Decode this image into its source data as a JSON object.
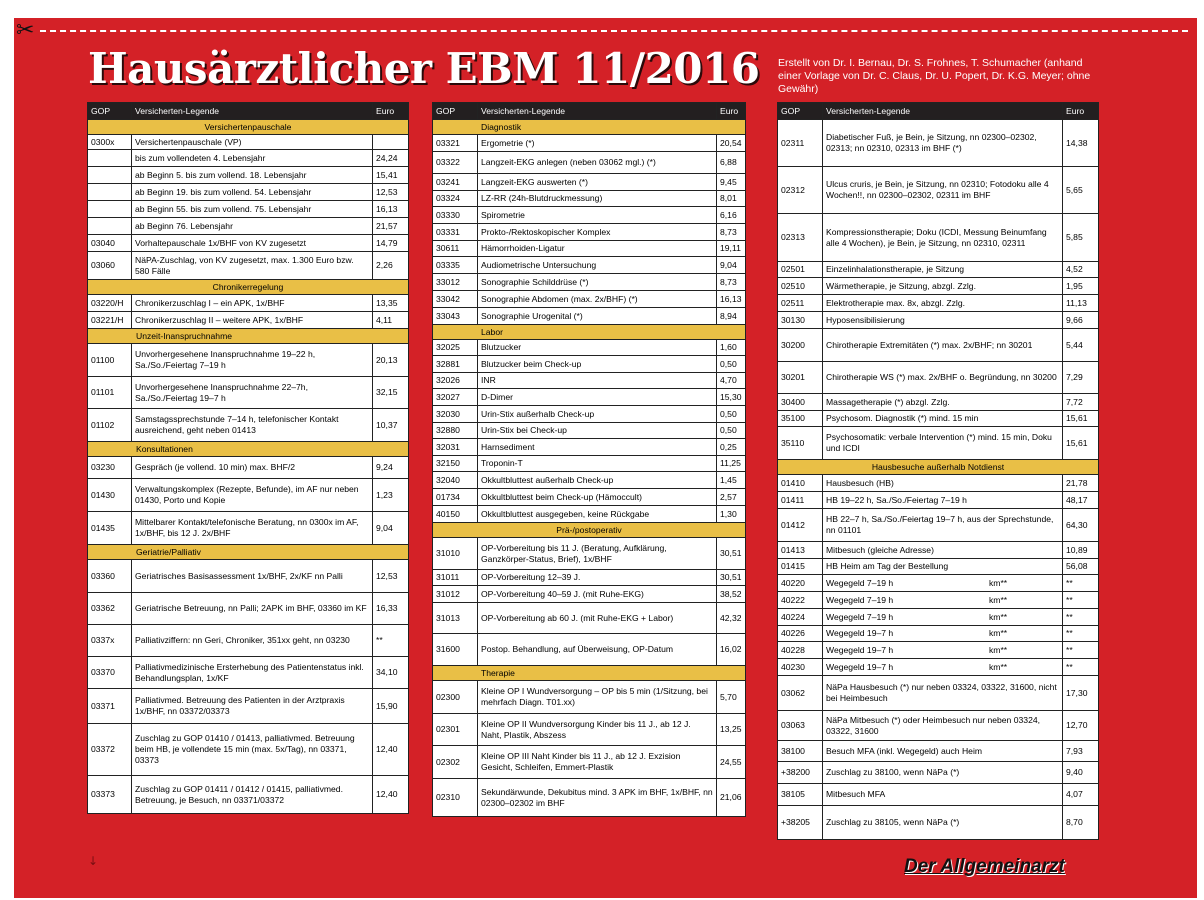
{
  "title": "Hausärztlicher EBM 11/2016",
  "credits": "Erstellt von Dr. I. Bernau, Dr. S. Frohnes, T. Schumacher (anhand einer Vorlage von Dr. C. Claus, Dr. U. Popert, Dr. K.G. Meyer; ohne Gewähr)",
  "brand": "Der Allgemeinarzt",
  "icons": {
    "scissors": "scissors-icon",
    "arrow": "arrow-down-icon"
  },
  "colors": {
    "background": "#d42127",
    "section": "#e9bf46",
    "header": "#231f20"
  },
  "header": {
    "gop": "GOP",
    "legend": "Versicherten-Legende",
    "euro": "Euro"
  },
  "columns": [
    {
      "rows": [
        {
          "t": "s",
          "label": "Versichertenpauschale",
          "h": 15
        },
        {
          "t": "r",
          "gop": "0300x",
          "text": "Versichertenpauschale (VP)",
          "euro": "",
          "h": 15
        },
        {
          "t": "r",
          "gop": "",
          "text": "bis zum vollendeten 4. Lebensjahr",
          "euro": "24,24",
          "h": 17,
          "sub": 1
        },
        {
          "t": "r",
          "gop": "",
          "text": "ab Beginn 5. bis zum vollend. 18. Lebensjahr",
          "euro": "15,41",
          "h": 17,
          "sub": 1
        },
        {
          "t": "r",
          "gop": "",
          "text": "ab Beginn 19. bis zum vollend. 54. Lebensjahr",
          "euro": "12,53",
          "h": 17,
          "sub": 1
        },
        {
          "t": "r",
          "gop": "",
          "text": "ab Beginn 55. bis zum vollend. 75. Lebensjahr",
          "euro": "16,13",
          "h": 17,
          "sub": 1
        },
        {
          "t": "r",
          "gop": "",
          "text": "ab Beginn 76. Lebensjahr",
          "euro": "21,57",
          "h": 17,
          "sub": 1
        },
        {
          "t": "r",
          "gop": "03040",
          "text": "Vorhaltepauschale 1x/BHF von KV zugesetzt",
          "euro": "14,79",
          "h": 17
        },
        {
          "t": "r",
          "gop": "03060",
          "text": "NäPA-Zuschlag, von KV zugesetzt, max. 1.300 Euro bzw. 580 Fälle",
          "euro": "2,26",
          "h": 28
        },
        {
          "t": "s",
          "label": "Chronikerregelung",
          "h": 15
        },
        {
          "t": "r",
          "gop": "03220/H",
          "text": "Chronikerzuschlag I – ein APK, 1x/BHF",
          "euro": "13,35",
          "h": 17
        },
        {
          "t": "r",
          "gop": "03221/H",
          "text": "Chronikerzuschlag II – weitere APK, 1x/BHF",
          "euro": "4,11",
          "h": 17
        },
        {
          "t": "s",
          "label": "Unzeit-Inanspruchnahme",
          "h": 15,
          "left": 1
        },
        {
          "t": "r",
          "gop": "01100",
          "text": "Unvorhergesehene Inanspruchnahme 19–22 h, Sa./So./Feiertag 7–19 h",
          "euro": "20,13",
          "h": 33
        },
        {
          "t": "r",
          "gop": "01101",
          "text": "Unvorhergesehene Inanspruchnahme 22–7h, Sa./So./Feiertag 19–7 h",
          "euro": "32,15",
          "h": 32
        },
        {
          "t": "r",
          "gop": "01102",
          "text": "Samstagssprechstunde 7–14 h, telefonischer Kontakt ausreichend, geht neben 01413",
          "euro": "10,37",
          "h": 33
        },
        {
          "t": "s",
          "label": "Konsultationen",
          "h": 15,
          "left": 1
        },
        {
          "t": "r",
          "gop": "03230",
          "text": "Gespräch (je vollend. 10 min) max. BHF/2",
          "euro": "9,24",
          "h": 22
        },
        {
          "t": "r",
          "gop": "01430",
          "text": "Verwaltungskomplex (Rezepte, Befunde), im AF nur neben 01430, Porto und Kopie",
          "euro": "1,23",
          "h": 33
        },
        {
          "t": "r",
          "gop": "01435",
          "text": "Mittelbarer Kontakt/telefonische Beratung, nn 0300x im AF, 1x/BHF, bis 12 J. 2x/BHF",
          "euro": "9,04",
          "h": 33
        },
        {
          "t": "s",
          "label": "Geriatrie/Palliativ",
          "h": 15,
          "left": 1
        },
        {
          "t": "r",
          "gop": "03360",
          "text": "Geriatrisches Basisassessment 1x/BHF, 2x/KF nn Palli",
          "euro": "12,53",
          "h": 33
        },
        {
          "t": "r",
          "gop": "03362",
          "text": "Geriatrische Betreuung, nn Palli; 2APK im BHF, 03360 im KF",
          "euro": "16,33",
          "h": 32
        },
        {
          "t": "r",
          "gop": "0337x",
          "text": "Palliativziffern: nn Geri, Chroniker, 351xx geht, nn 03230",
          "euro": "**",
          "h": 32
        },
        {
          "t": "r",
          "gop": "03370",
          "text": "Palliativmedizinische Ersterhebung des Patientenstatus inkl. Behandlungsplan, 1x/KF",
          "euro": "34,10",
          "h": 32
        },
        {
          "t": "r",
          "gop": "03371",
          "text": "Palliativmed. Betreuung des Patienten in der Arztpraxis 1x/BHF, nn 03372/03373",
          "euro": "15,90",
          "h": 35
        },
        {
          "t": "r",
          "gop": "03372",
          "text": "Zuschlag zu GOP 01410 / 01413, palliativmed. Betreuung beim HB, je vollendete 15 min (max. 5x/Tag), nn 03371, 03373",
          "euro": "12,40",
          "h": 52
        },
        {
          "t": "r",
          "gop": "03373",
          "text": "Zuschlag zu GOP 01411 / 01412 / 01415, palliativmed. Betreuung, je Besuch, nn 03371/03372",
          "euro": "12,40",
          "h": 38
        }
      ]
    },
    {
      "rows": [
        {
          "t": "s",
          "label": "Diagnostik",
          "h": 15,
          "left": 1
        },
        {
          "t": "r",
          "gop": "03321",
          "text": "Ergometrie (*)",
          "euro": "20,54",
          "h": 17
        },
        {
          "t": "r",
          "gop": "03322",
          "text": "Langzeit-EKG anlegen (neben 03062 mgl.) (*)",
          "euro": "6,88",
          "h": 22
        },
        {
          "t": "r",
          "gop": "03241",
          "text": "Langzeit-EKG auswerten (*)",
          "euro": "9,45",
          "h": 17
        },
        {
          "t": "r",
          "gop": "03324",
          "text": "LZ-RR (24h-Blutdruckmessung)",
          "euro": "8,01",
          "h": 16
        },
        {
          "t": "r",
          "gop": "03330",
          "text": "Spirometrie",
          "euro": "6,16",
          "h": 17
        },
        {
          "t": "r",
          "gop": "03331",
          "text": "Prokto-/Rektoskopischer Komplex",
          "euro": "8,73",
          "h": 17
        },
        {
          "t": "r",
          "gop": "30611",
          "text": "Hämorrhoiden-Ligatur",
          "euro": "19,11",
          "h": 16
        },
        {
          "t": "r",
          "gop": "03335",
          "text": "Audiometrische Untersuchung",
          "euro": "9,04",
          "h": 17
        },
        {
          "t": "r",
          "gop": "33012",
          "text": "Sonographie Schilddrüse (*)",
          "euro": "8,73",
          "h": 17
        },
        {
          "t": "r",
          "gop": "33042",
          "text": "Sonographie Abdomen (max. 2x/BHF) (*)",
          "euro": "16,13",
          "h": 17
        },
        {
          "t": "r",
          "gop": "33043",
          "text": "Sonographie Urogenital (*)",
          "euro": "8,94",
          "h": 17
        },
        {
          "t": "s",
          "label": "Labor",
          "h": 15,
          "left": 1
        },
        {
          "t": "r",
          "gop": "32025",
          "text": "Blutzucker",
          "euro": "1,60",
          "h": 16
        },
        {
          "t": "r",
          "gop": "32881",
          "text": "Blutzucker beim Check-up",
          "euro": "0,50",
          "h": 17
        },
        {
          "t": "r",
          "gop": "32026",
          "text": "INR",
          "euro": "4,70",
          "h": 16
        },
        {
          "t": "r",
          "gop": "32027",
          "text": "D-Dimer",
          "euro": "15,30",
          "h": 17
        },
        {
          "t": "r",
          "gop": "32030",
          "text": "Urin-Stix außerhalb Check-up",
          "euro": "0,50",
          "h": 17
        },
        {
          "t": "r",
          "gop": "32880",
          "text": "Urin-Stix bei Check-up",
          "euro": "0,50",
          "h": 16
        },
        {
          "t": "r",
          "gop": "32031",
          "text": "Harnsediment",
          "euro": "0,25",
          "h": 17
        },
        {
          "t": "r",
          "gop": "32150",
          "text": "Troponin-T",
          "euro": "11,25",
          "h": 16
        },
        {
          "t": "r",
          "gop": "32040",
          "text": "Okkultbluttest außerhalb Check-up",
          "euro": "1,45",
          "h": 17
        },
        {
          "t": "r",
          "gop": "01734",
          "text": "Okkultbluttest beim Check-up (Hämoccult)",
          "euro": "2,57",
          "h": 17
        },
        {
          "t": "r",
          "gop": "40150",
          "text": "Okkultbluttest ausgegeben, keine Rückgabe",
          "euro": "1,30",
          "h": 17
        },
        {
          "t": "s",
          "label": "Prä-/postoperativ",
          "h": 15
        },
        {
          "t": "r",
          "gop": "31010",
          "text": "OP-Vorbereitung bis 11 J. (Beratung, Aufklärung, Ganzkörper-Status, Brief), 1x/BHF",
          "euro": "30,51",
          "h": 32
        },
        {
          "t": "r",
          "gop": "31011",
          "text": "OP-Vorbereitung 12–39 J.",
          "euro": "30,51",
          "h": 16
        },
        {
          "t": "r",
          "gop": "31012",
          "text": "OP-Vorbereitung 40–59 J. (mit Ruhe-EKG)",
          "euro": "38,52",
          "h": 17
        },
        {
          "t": "r",
          "gop": "31013",
          "text": "OP-Vorbereitung ab 60 J. (mit Ruhe-EKG + Labor)",
          "euro": "42,32",
          "h": 31
        },
        {
          "t": "r",
          "gop": "31600",
          "text": "Postop. Behandlung, auf Überweisung, OP-Datum",
          "euro": "16,02",
          "h": 32
        },
        {
          "t": "s",
          "label": "Therapie",
          "h": 15,
          "left": 1
        },
        {
          "t": "r",
          "gop": "02300",
          "text": "Kleine OP I Wundversorgung – OP bis 5 min (1/Sitzung, bei mehrfach Diagn. T01.xx)",
          "euro": "5,70",
          "h": 33
        },
        {
          "t": "r",
          "gop": "02301",
          "text": "Kleine OP II Wundversorgung Kinder bis 11 J., ab 12 J. Naht, Plastik, Abszess",
          "euro": "13,25",
          "h": 32
        },
        {
          "t": "r",
          "gop": "02302",
          "text": "Kleine OP III Naht Kinder bis 11 J., ab 12 J. Exzision Gesicht, Schleifen, Emmert-Plastik",
          "euro": "24,55",
          "h": 33
        },
        {
          "t": "r",
          "gop": "02310",
          "text": "Sekundärwunde, Dekubitus mind. 3 APK im BHF, 1x/BHF, nn 02300–02302 im BHF",
          "euro": "21,06",
          "h": 38
        }
      ]
    },
    {
      "rows": [
        {
          "t": "r",
          "gop": "02311",
          "text": "Diabetischer Fuß, je Bein, je Sitzung, nn 02300–02302, 02313; nn 02310, 02313 im BHF (*)",
          "euro": "14,38",
          "h": 47
        },
        {
          "t": "r",
          "gop": "02312",
          "text": "Ulcus cruris, je Bein, je Sitzung, nn 02310; Fotodoku alle 4 Wochen!!, nn 02300–02302, 02311 im BHF",
          "euro": "5,65",
          "h": 47
        },
        {
          "t": "r",
          "gop": "02313",
          "text": "Kompressionstherapie; Doku (ICDI, Messung Beinumfang alle 4 Wochen), je Bein, je Sitzung, nn 02310, 02311",
          "euro": "5,85",
          "h": 48
        },
        {
          "t": "r",
          "gop": "02501",
          "text": "Einzelinhalationstherapie, je Sitzung",
          "euro": "4,52",
          "h": 16
        },
        {
          "t": "r",
          "gop": "02510",
          "text": "Wärmetherapie, je Sitzung, abzgl. Zzlg.",
          "euro": "1,95",
          "h": 17
        },
        {
          "t": "r",
          "gop": "02511",
          "text": "Elektrotherapie max. 8x, abzgl. Zzlg.",
          "euro": "11,13",
          "h": 17
        },
        {
          "t": "r",
          "gop": "30130",
          "text": "Hyposensibilisierung",
          "euro": "9,66",
          "h": 17
        },
        {
          "t": "r",
          "gop": "30200",
          "text": "Chirotherapie Extremitäten (*) max. 2x/BHF; nn 30201",
          "euro": "5,44",
          "h": 33
        },
        {
          "t": "r",
          "gop": "30201",
          "text": "Chirotherapie WS (*) max. 2x/BHF o. Begründung, nn 30200",
          "euro": "7,29",
          "h": 32
        },
        {
          "t": "r",
          "gop": "30400",
          "text": "Massagetherapie (*) abzgl. Zzlg.",
          "euro": "7,72",
          "h": 17
        },
        {
          "t": "r",
          "gop": "35100",
          "text": "Psychosom. Diagnostik (*) mind. 15 min",
          "euro": "15,61",
          "h": 16
        },
        {
          "t": "r",
          "gop": "35110",
          "text": "Psychosomatik: verbale Intervention (*) mind. 15 min, Doku und ICDI",
          "euro": "15,61",
          "h": 33
        },
        {
          "t": "s",
          "label": "Hausbesuche außerhalb Notdienst",
          "h": 15
        },
        {
          "t": "r",
          "gop": "01410",
          "text": "Hausbesuch (HB)",
          "euro": "21,78",
          "h": 17
        },
        {
          "t": "r",
          "gop": "01411",
          "text": "HB 19–22 h, Sa./So./Feiertag 7–19 h",
          "euro": "48,17",
          "h": 17
        },
        {
          "t": "r",
          "gop": "01412",
          "text": "HB 22–7 h, Sa./So./Feiertag 19–7 h, aus der Sprechstunde, nn 01101",
          "euro": "64,30",
          "h": 33
        },
        {
          "t": "r",
          "gop": "01413",
          "text": "Mitbesuch (gleiche Adresse)",
          "euro": "10,89",
          "h": 17
        },
        {
          "t": "r",
          "gop": "01415",
          "text": "HB Heim am Tag der Bestellung",
          "euro": "56,08",
          "h": 16
        },
        {
          "t": "r",
          "gop": "40220",
          "text": "Wegegeld 7–19 h",
          "km": "km**",
          "euro": "**",
          "h": 17
        },
        {
          "t": "r",
          "gop": "40222",
          "text": "Wegegeld 7–19 h",
          "km": "km**",
          "euro": "**",
          "h": 17
        },
        {
          "t": "r",
          "gop": "40224",
          "text": "Wegegeld 7–19 h",
          "km": "km**",
          "euro": "**",
          "h": 17
        },
        {
          "t": "r",
          "gop": "40226",
          "text": "Wegegeld 19–7 h",
          "km": "km**",
          "euro": "**",
          "h": 16
        },
        {
          "t": "r",
          "gop": "40228",
          "text": "Wegegeld 19–7 h",
          "km": "km**",
          "euro": "**",
          "h": 17
        },
        {
          "t": "r",
          "gop": "40230",
          "text": "Wegegeld 19–7 h",
          "km": "km**",
          "euro": "**",
          "h": 17
        },
        {
          "t": "r",
          "gop": "03062",
          "text": "NäPa Hausbesuch (*) nur neben 03324, 03322, 31600, nicht bei Heimbesuch",
          "euro": "17,30",
          "h": 35
        },
        {
          "t": "r",
          "gop": "03063",
          "text": "NäPa Mitbesuch (*) oder Heimbesuch nur neben 03324, 03322, 31600",
          "euro": "12,70",
          "h": 30
        },
        {
          "t": "r",
          "gop": "38100",
          "text": "Besuch MFA (inkl. Wegegeld) auch Heim",
          "euro": "7,93",
          "h": 21
        },
        {
          "t": "r",
          "gop": "+38200",
          "text": "Zuschlag zu 38100, wenn NäPa (*)",
          "euro": "9,40",
          "h": 22
        },
        {
          "t": "r",
          "gop": "38105",
          "text": "Mitbesuch MFA",
          "euro": "4,07",
          "h": 22
        },
        {
          "t": "r",
          "gop": "+38205",
          "text": "Zuschlag zu 38105, wenn NäPa (*)",
          "euro": "8,70",
          "h": 34
        }
      ]
    }
  ]
}
